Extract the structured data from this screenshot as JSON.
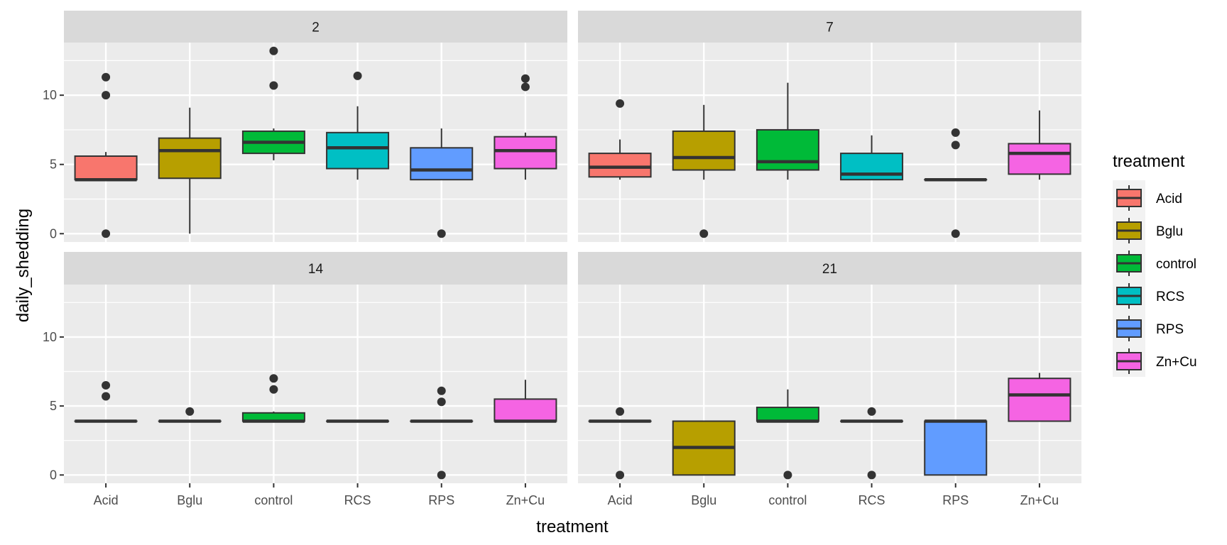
{
  "chart_data": {
    "type": "boxplot",
    "facet_variable": "day",
    "xlabel": "treatment",
    "ylabel": "daily_shedding",
    "ylim": [
      -0.6,
      13.8
    ],
    "y_ticks": [
      0,
      5,
      10
    ],
    "grid": true,
    "legend": {
      "title": "treatment",
      "position": "right"
    },
    "categories": [
      "Acid",
      "Bglu",
      "control",
      "RCS",
      "RPS",
      "Zn+Cu"
    ],
    "colors": {
      "Acid": "#F8766D",
      "Bglu": "#B79F00",
      "control": "#00BA38",
      "RCS": "#00BFC4",
      "RPS": "#619CFF",
      "Zn+Cu": "#F564E3"
    },
    "facets": [
      {
        "label": "2",
        "boxes": [
          {
            "category": "Acid",
            "whisker_low": 3.9,
            "q1": 3.9,
            "median": 3.9,
            "q3": 5.6,
            "whisker_high": 5.9,
            "outliers": [
              11.3,
              10.0,
              0
            ]
          },
          {
            "category": "Bglu",
            "whisker_low": 0,
            "q1": 4.0,
            "median": 6.0,
            "q3": 6.9,
            "whisker_high": 9.1,
            "outliers": []
          },
          {
            "category": "control",
            "whisker_low": 5.3,
            "q1": 5.8,
            "median": 6.6,
            "q3": 7.4,
            "whisker_high": 7.6,
            "outliers": [
              13.2,
              10.7
            ]
          },
          {
            "category": "RCS",
            "whisker_low": 3.9,
            "q1": 4.7,
            "median": 6.2,
            "q3": 7.3,
            "whisker_high": 9.2,
            "outliers": [
              11.4
            ]
          },
          {
            "category": "RPS",
            "whisker_low": 3.9,
            "q1": 3.9,
            "median": 4.6,
            "q3": 6.2,
            "whisker_high": 7.6,
            "outliers": [
              0
            ]
          },
          {
            "category": "Zn+Cu",
            "whisker_low": 3.9,
            "q1": 4.7,
            "median": 6.0,
            "q3": 7.0,
            "whisker_high": 7.3,
            "outliers": [
              11.2,
              10.6
            ]
          }
        ]
      },
      {
        "label": "7",
        "boxes": [
          {
            "category": "Acid",
            "whisker_low": 3.9,
            "q1": 4.1,
            "median": 4.8,
            "q3": 5.8,
            "whisker_high": 6.8,
            "outliers": [
              9.4
            ]
          },
          {
            "category": "Bglu",
            "whisker_low": 3.9,
            "q1": 4.6,
            "median": 5.5,
            "q3": 7.4,
            "whisker_high": 9.3,
            "outliers": [
              0
            ]
          },
          {
            "category": "control",
            "whisker_low": 3.9,
            "q1": 4.6,
            "median": 5.2,
            "q3": 7.5,
            "whisker_high": 10.9,
            "outliers": []
          },
          {
            "category": "RCS",
            "whisker_low": 3.9,
            "q1": 3.9,
            "median": 4.3,
            "q3": 5.8,
            "whisker_high": 7.1,
            "outliers": []
          },
          {
            "category": "RPS",
            "whisker_low": 3.9,
            "q1": 3.9,
            "median": 3.9,
            "q3": 3.9,
            "whisker_high": 3.9,
            "outliers": [
              7.3,
              6.4,
              0
            ]
          },
          {
            "category": "Zn+Cu",
            "whisker_low": 3.9,
            "q1": 4.3,
            "median": 5.8,
            "q3": 6.5,
            "whisker_high": 8.9,
            "outliers": []
          }
        ]
      },
      {
        "label": "14",
        "boxes": [
          {
            "category": "Acid",
            "whisker_low": 3.9,
            "q1": 3.9,
            "median": 3.9,
            "q3": 3.9,
            "whisker_high": 3.9,
            "outliers": [
              6.5,
              5.7
            ]
          },
          {
            "category": "Bglu",
            "whisker_low": 3.9,
            "q1": 3.9,
            "median": 3.9,
            "q3": 3.9,
            "whisker_high": 3.9,
            "outliers": [
              4.6
            ]
          },
          {
            "category": "control",
            "whisker_low": 3.9,
            "q1": 3.9,
            "median": 3.9,
            "q3": 4.5,
            "whisker_high": 4.6,
            "outliers": [
              7.0,
              6.2
            ]
          },
          {
            "category": "RCS",
            "whisker_low": 3.9,
            "q1": 3.9,
            "median": 3.9,
            "q3": 3.9,
            "whisker_high": 3.9,
            "outliers": []
          },
          {
            "category": "RPS",
            "whisker_low": 3.9,
            "q1": 3.9,
            "median": 3.9,
            "q3": 3.9,
            "whisker_high": 3.9,
            "outliers": [
              6.1,
              5.3,
              0
            ]
          },
          {
            "category": "Zn+Cu",
            "whisker_low": 3.9,
            "q1": 3.9,
            "median": 3.9,
            "q3": 5.5,
            "whisker_high": 6.9,
            "outliers": []
          }
        ]
      },
      {
        "label": "21",
        "boxes": [
          {
            "category": "Acid",
            "whisker_low": 3.9,
            "q1": 3.9,
            "median": 3.9,
            "q3": 3.9,
            "whisker_high": 3.9,
            "outliers": [
              4.6,
              0
            ]
          },
          {
            "category": "Bglu",
            "whisker_low": 0,
            "q1": 0,
            "median": 2.0,
            "q3": 3.9,
            "whisker_high": 3.9,
            "outliers": []
          },
          {
            "category": "control",
            "whisker_low": 3.9,
            "q1": 3.9,
            "median": 3.9,
            "q3": 4.9,
            "whisker_high": 6.2,
            "outliers": [
              0
            ]
          },
          {
            "category": "RCS",
            "whisker_low": 3.9,
            "q1": 3.9,
            "median": 3.9,
            "q3": 3.9,
            "whisker_high": 3.9,
            "outliers": [
              4.6,
              0
            ]
          },
          {
            "category": "RPS",
            "whisker_low": 0,
            "q1": 0,
            "median": 3.9,
            "q3": 3.9,
            "whisker_high": 3.9,
            "outliers": []
          },
          {
            "category": "Zn+Cu",
            "whisker_low": 3.9,
            "q1": 3.9,
            "median": 5.8,
            "q3": 7.0,
            "whisker_high": 7.4,
            "outliers": []
          }
        ]
      }
    ]
  }
}
